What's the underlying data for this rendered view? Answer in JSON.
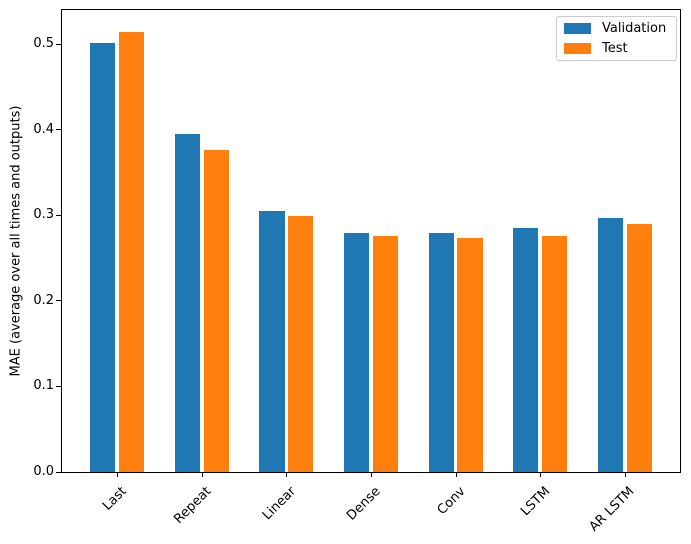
{
  "chart_data": {
    "type": "bar",
    "categories": [
      "Last",
      "Repeat",
      "Linear",
      "Dense",
      "Conv",
      "LSTM",
      "AR LSTM"
    ],
    "series": [
      {
        "name": "Validation",
        "color": "#1f77b4",
        "values": [
          0.501,
          0.395,
          0.305,
          0.279,
          0.279,
          0.285,
          0.297
        ]
      },
      {
        "name": "Test",
        "color": "#ff7f0e",
        "values": [
          0.514,
          0.376,
          0.299,
          0.276,
          0.274,
          0.276,
          0.29
        ]
      }
    ],
    "title": "",
    "xlabel": "",
    "ylabel": "MAE (average over all times and outputs)",
    "ylim": [
      0,
      0.54
    ],
    "yticks": [
      0.0,
      0.1,
      0.2,
      0.3,
      0.4,
      0.5
    ],
    "ytick_labels": [
      "0.0",
      "0.1",
      "0.2",
      "0.3",
      "0.4",
      "0.5"
    ],
    "xtick_rotation": 45,
    "bar_width": 0.3,
    "bar_offset": 0.17,
    "grid": false,
    "legend_position": "upper right"
  }
}
